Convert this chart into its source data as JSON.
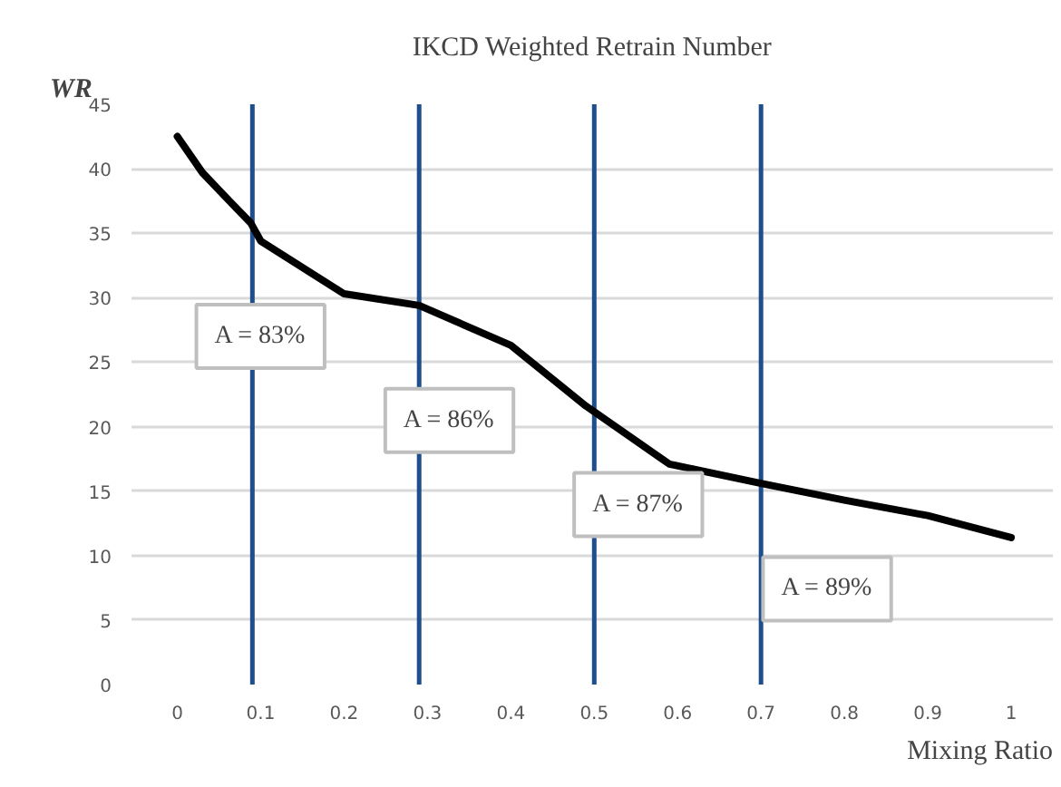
{
  "chart_data": {
    "type": "line",
    "title": "IKCD Weighted Retrain Number",
    "xlabel": "Mixing Ratio",
    "ylabel": "WR",
    "x": [
      0,
      0.03,
      0.055,
      0.088,
      0.1,
      0.2,
      0.29,
      0.4,
      0.49,
      0.59,
      0.7,
      0.8,
      0.9,
      1
    ],
    "series": [
      {
        "color": "#000000",
        "values": [
          42.5,
          39.7,
          38,
          35.8,
          34.4,
          30.3,
          29.4,
          26.3,
          21.6,
          17.1,
          15.6,
          14.3,
          13.1,
          11.4
        ]
      }
    ],
    "xlim": [
      -0.055,
      1.05
    ],
    "ylim": [
      0,
      45
    ],
    "xticks": [
      0,
      0.1,
      0.2,
      0.3,
      0.4,
      0.5,
      0.6,
      0.7,
      0.8,
      0.9,
      1
    ],
    "yticks": [
      0,
      5,
      10,
      15,
      20,
      25,
      30,
      35,
      40,
      45
    ],
    "grid": "y",
    "marker": "none",
    "line_style": "solid",
    "ref_lines": [
      {
        "axis": "x",
        "value": 0.09,
        "color": "#1f4e8c"
      },
      {
        "axis": "x",
        "value": 0.29,
        "color": "#1f4e8c"
      },
      {
        "axis": "x",
        "value": 0.5,
        "color": "#1f4e8c"
      },
      {
        "axis": "x",
        "value": 0.7,
        "color": "#1f4e8c"
      }
    ],
    "annotations": [
      "A = 83%",
      "A = 86%",
      "A = 87%",
      "A = 89%"
    ]
  }
}
